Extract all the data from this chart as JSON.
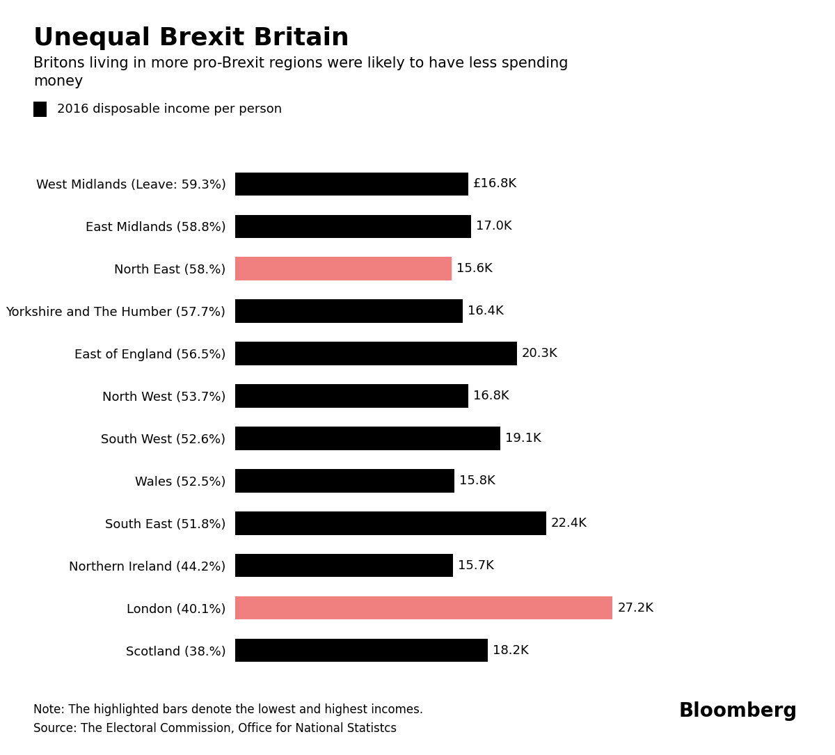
{
  "title": "Unequal Brexit Britain",
  "subtitle": "Britons living in more pro-Brexit regions were likely to have less spending\nmoney",
  "legend_label": "2016 disposable income per person",
  "categories": [
    "West Midlands (Leave: 59.3%)",
    "East Midlands (58.8%)",
    "North East (58.%)",
    "Yorkshire and The Humber (57.7%)",
    "East of England (56.5%)",
    "North West (53.7%)",
    "South West (52.6%)",
    "Wales (52.5%)",
    "South East (51.8%)",
    "Northern Ireland (44.2%)",
    "London (40.1%)",
    "Scotland (38.%)"
  ],
  "values": [
    16.8,
    17.0,
    15.6,
    16.4,
    20.3,
    16.8,
    19.1,
    15.8,
    22.4,
    15.7,
    27.2,
    18.2
  ],
  "bar_colors": [
    "#000000",
    "#000000",
    "#f08080",
    "#000000",
    "#000000",
    "#000000",
    "#000000",
    "#000000",
    "#000000",
    "#000000",
    "#f08080",
    "#000000"
  ],
  "value_labels": [
    "£16.8K",
    "17.0K",
    "15.6K",
    "16.4K",
    "20.3K",
    "16.8K",
    "19.1K",
    "15.8K",
    "22.4K",
    "15.7K",
    "27.2K",
    "18.2K"
  ],
  "note": "Note: The highlighted bars denote the lowest and highest incomes.\nSource: The Electoral Commission, Office for National Statistcs",
  "bloomberg": "Bloomberg",
  "xlim": [
    0,
    30
  ],
  "bar_height": 0.55,
  "bg_color": "#ffffff",
  "title_fontsize": 26,
  "subtitle_fontsize": 15,
  "label_fontsize": 13,
  "value_fontsize": 13,
  "note_fontsize": 12,
  "bloomberg_fontsize": 20,
  "legend_fontsize": 13
}
